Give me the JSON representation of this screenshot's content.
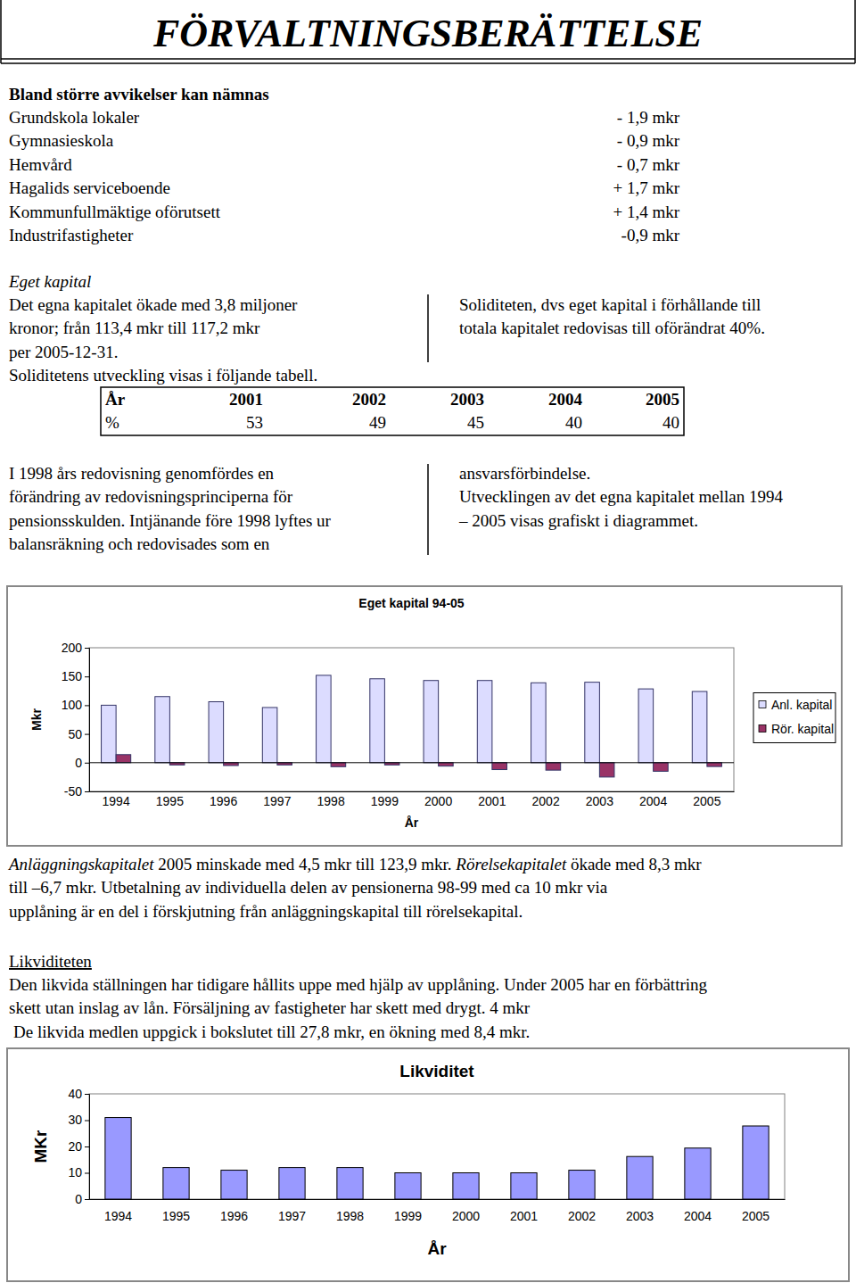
{
  "header": {
    "title": "FÖRVALTNINGSBERÄTTELSE"
  },
  "deviations": {
    "heading": "Bland större avvikelser kan nämnas",
    "rows": [
      {
        "label": "Grundskola lokaler",
        "value": "- 1,9 mkr"
      },
      {
        "label": "Gymnasieskola",
        "value": "- 0,9 mkr"
      },
      {
        "label": "Hemvård",
        "value": "- 0,7 mkr"
      },
      {
        "label": "Hagalids serviceboende",
        "value": "+ 1,7 mkr"
      },
      {
        "label": "Kommunfullmäktige oförutsett",
        "value": "+ 1,4 mkr"
      },
      {
        "label": "Industrifastigheter",
        "value": "-0,9 mkr"
      }
    ]
  },
  "equity": {
    "heading": "Eget kapital",
    "left_lines": [
      "Det egna kapitalet ökade med 3,8 miljoner",
      "kronor; från 113,4 mkr till 117,2 mkr",
      "per 2005-12-31.",
      "Soliditetens utveckling visas i följande tabell."
    ],
    "right_lines": [
      "Soliditeten, dvs eget kapital i förhållande till",
      "totala kapitalet redovisas till oförändrat 40%."
    ]
  },
  "solidity_table": {
    "rows": [
      [
        "År",
        2001,
        2002,
        2003,
        2004,
        2005
      ],
      [
        "%",
        53,
        49,
        45,
        40,
        40
      ]
    ]
  },
  "pension": {
    "left_lines": [
      "I 1998 års redovisning genomfördes en",
      "förändring av redovisningsprinciperna för",
      "pensionsskulden. Intjänande före 1998 lyftes ur",
      "balansräkning och redovisades som en"
    ],
    "right_lines": [
      "ansvarsförbindelse.",
      "Utvecklingen av det egna kapitalet mellan 1994",
      "– 2005 visas grafiskt i diagrammet."
    ]
  },
  "capital_text": {
    "lines": [
      [
        {
          "text": "Anläggningskapitalet",
          "style": "italic"
        },
        {
          "text": " 2005 minskade med 4,5 mkr till 123,9 mkr. ",
          "style": "normal"
        },
        {
          "text": "Rörelsekapitalet",
          "style": "italic"
        },
        {
          "text": " ökade med 8,3 mkr",
          "style": "normal"
        }
      ],
      [
        {
          "text": "till –6,7 mkr. Utbetalning av individuella delen av pensionerna 98-99 med ca 10 mkr via",
          "style": "normal"
        }
      ],
      [
        {
          "text": "upplåning är en del i förskjutning från anläggningskapital till rörelsekapital.",
          "style": "normal"
        }
      ]
    ]
  },
  "liquidity": {
    "heading": "Likviditeten",
    "lines": [
      "Den likvida ställningen har tidigare hållits uppe med hjälp av upplåning. Under 2005 har en förbättring",
      "skett utan inslag av lån. Försäljning av fastigheter har skett med drygt. 4 mkr",
      "De likvida medlen uppgick i bokslutet till 27,8 mkr, en ökning med 8,4 mkr."
    ]
  },
  "chart_data": [
    {
      "type": "bar",
      "title": "Eget kapital 94-05",
      "x_label": "År",
      "y_label": "Mkr",
      "categories": [
        "1994",
        "1995",
        "1996",
        "1997",
        "1998",
        "1999",
        "2000",
        "2001",
        "2002",
        "2003",
        "2004",
        "2005"
      ],
      "series": [
        {
          "name": "Anl. kapital",
          "color": "#dcdcff",
          "values": [
            100,
            115,
            106,
            96,
            152,
            146,
            143,
            143,
            139,
            140,
            128.4,
            123.9
          ]
        },
        {
          "name": "Rör. kapital",
          "color": "#993366",
          "values": [
            14,
            -4,
            -5,
            -4,
            -7,
            -4,
            -6,
            -12,
            -13,
            -25,
            -15,
            -6.7
          ]
        }
      ],
      "ylim": [
        -50,
        200
      ],
      "yticks": [
        -50,
        0,
        50,
        100,
        150,
        200
      ],
      "legend": "right"
    },
    {
      "type": "bar",
      "title": "Likviditet",
      "x_label": "År",
      "y_label": "MKr",
      "categories": [
        "1994",
        "1995",
        "1996",
        "1997",
        "1998",
        "1999",
        "2000",
        "2001",
        "2002",
        "2003",
        "2004",
        "2005"
      ],
      "values": [
        31,
        12,
        11,
        12,
        12,
        10,
        10,
        10,
        11,
        16.2,
        19.4,
        27.8
      ],
      "color": "#9999ff",
      "ylim": [
        0,
        40
      ],
      "yticks": [
        0,
        10,
        20,
        30,
        40
      ]
    }
  ]
}
